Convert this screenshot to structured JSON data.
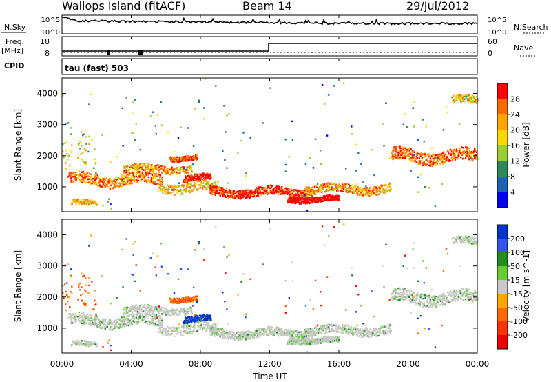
{
  "header": {
    "title": "Wallops Island (fitACF)",
    "beam": "Beam 14",
    "date": "29/Jul/2012"
  },
  "noise_panel": {
    "left_label": "N.Sky",
    "right_label": "N.Search",
    "left_ticks": [
      "10^5",
      "10^0"
    ],
    "right_ticks": [
      "10^5",
      "10^0"
    ]
  },
  "freq_panel": {
    "left_label_1": "Freq.",
    "left_label_2": "[MHz]",
    "right_label": "Nave",
    "left_ticks": [
      "18",
      "8"
    ],
    "right_ticks": [
      "60",
      "0"
    ]
  },
  "cpid_panel": {
    "label": "CPID",
    "text": "tau (fast) 503"
  },
  "time_axis": {
    "label": "Time UT",
    "ticks": [
      "00:00",
      "04:00",
      "08:00",
      "12:00",
      "16:00",
      "20:00",
      "00:00"
    ]
  },
  "chart_data": [
    {
      "type": "heatmap",
      "name": "power",
      "ylabel": "Slant Range [km]",
      "yticks": [
        "1000",
        "2000",
        "3000",
        "4000"
      ],
      "ylim": [
        200,
        4500
      ],
      "xlim_hours": [
        0,
        24
      ],
      "colorbar": {
        "label": "Power [dB]",
        "ticks": [
          "28",
          "24",
          "20",
          "16",
          "12",
          "8",
          "4"
        ],
        "colors": [
          "#ff0000",
          "#ff6a00",
          "#ffa500",
          "#ffd700",
          "#9acd32",
          "#2e8b57",
          "#1e64b4",
          "#0000ff"
        ]
      }
    },
    {
      "type": "heatmap",
      "name": "velocity",
      "ylabel": "Slant Range [km]",
      "yticks": [
        "1000",
        "2000",
        "3000",
        "4000"
      ],
      "ylim": [
        200,
        4500
      ],
      "xlim_hours": [
        0,
        24
      ],
      "colorbar": {
        "label": "Velocity [m s^-1]",
        "ticks": [
          "200",
          "100",
          "50",
          "15",
          "-15",
          "-50",
          "-100",
          "-200"
        ],
        "colors": [
          "#0033cc",
          "#3355ee",
          "#228b22",
          "#66cc33",
          "#c8c8c8",
          "#ffa500",
          "#ff6a00",
          "#ff3300",
          "#ee0000"
        ]
      }
    }
  ]
}
